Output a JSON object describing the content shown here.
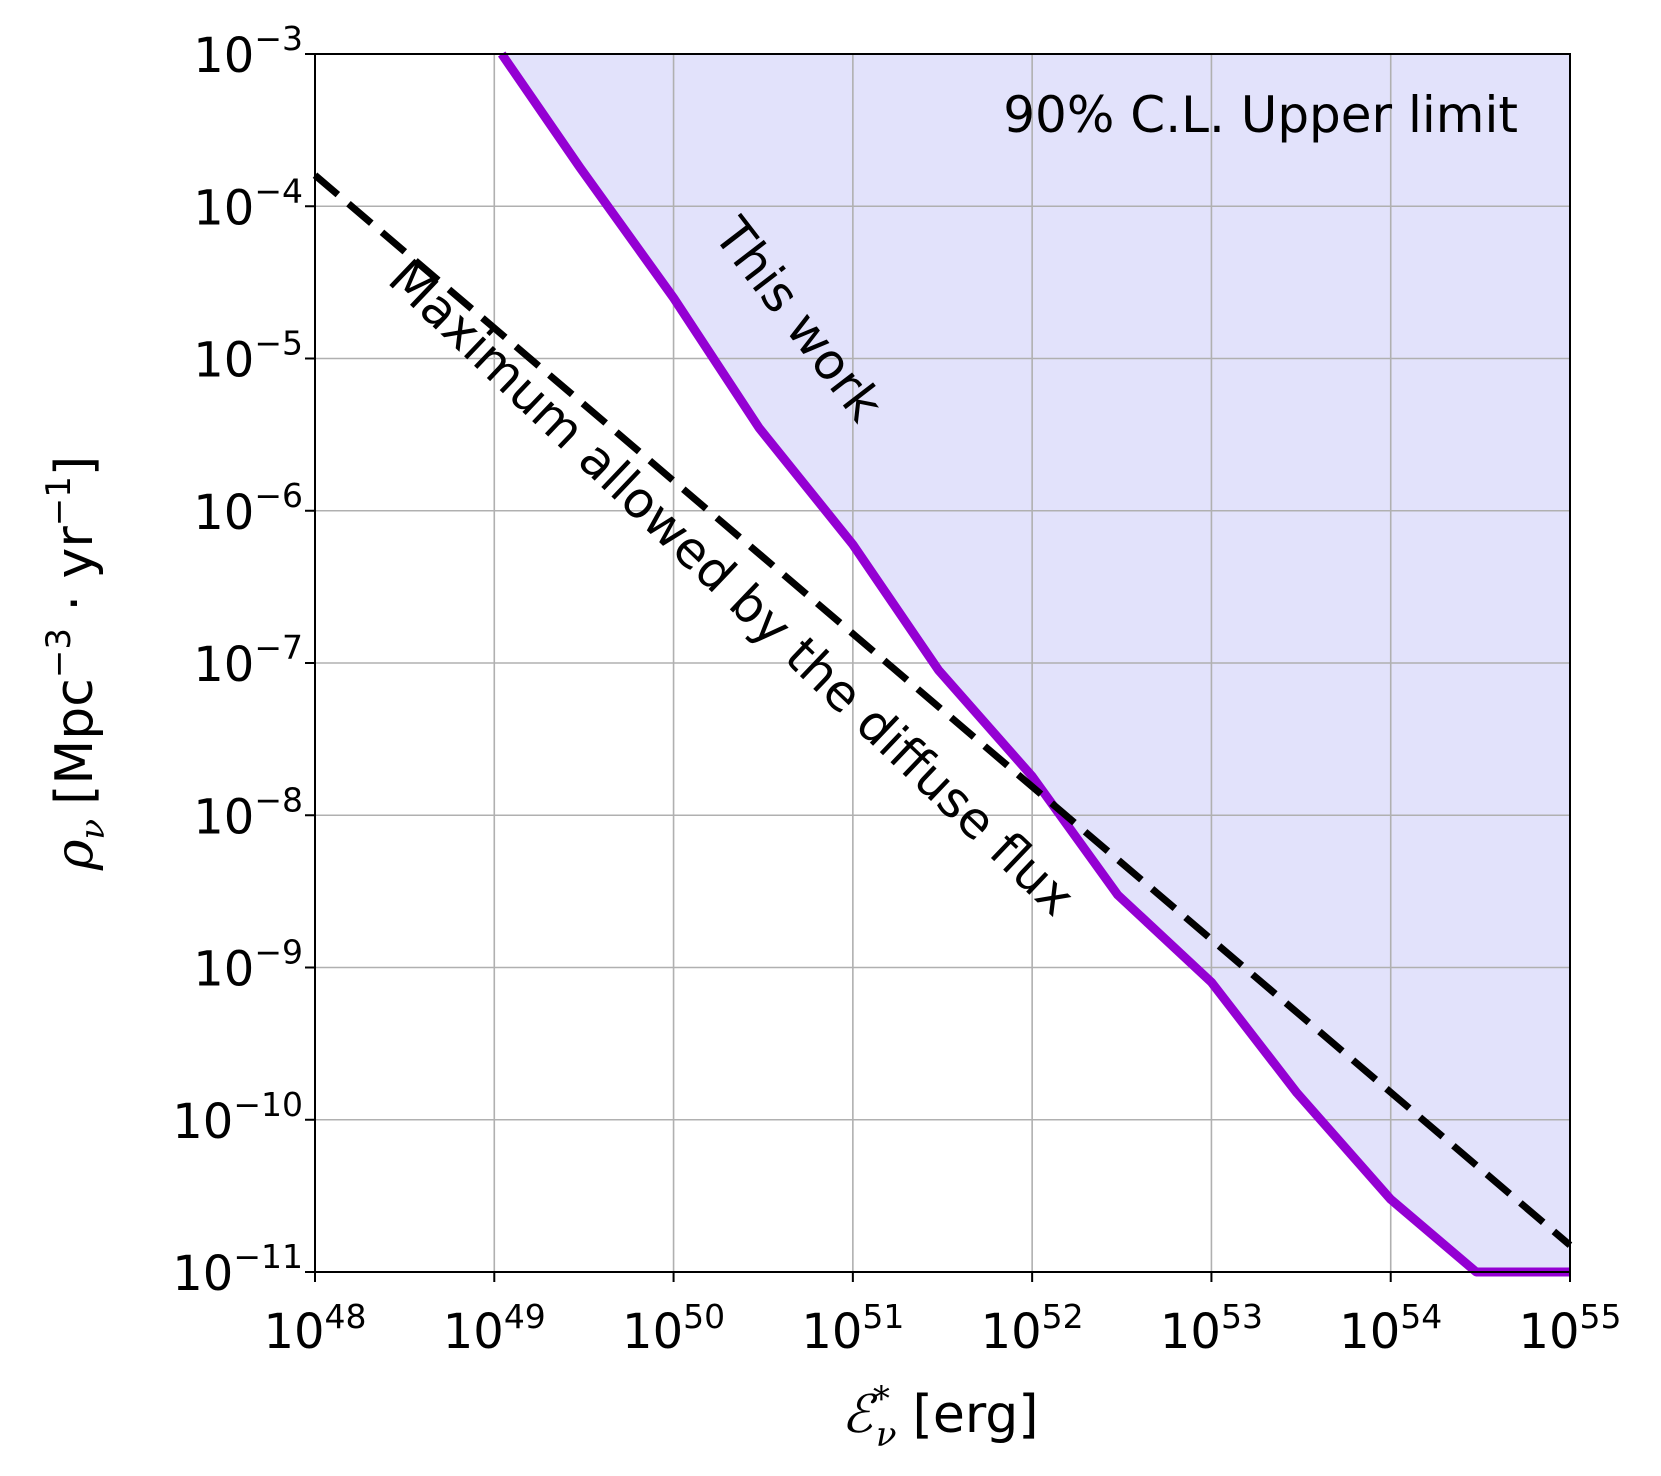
{
  "chart_data": {
    "type": "line",
    "title": "",
    "xlabel": {
      "symbol": "ℰ",
      "superscript": "*",
      "subscript": "ν",
      "unit": "[erg]"
    },
    "ylabel": {
      "symbol": "ρ",
      "subscript": "ν",
      "unit_prefix": "[Mpc",
      "unit_exp1": "−3",
      "unit_mid": " · yr",
      "unit_exp2": "−1",
      "unit_suffix": "]"
    },
    "x_scale": "log",
    "y_scale": "log",
    "xlim": [
      1e+48,
      1e+55
    ],
    "ylim": [
      1e-11,
      0.001
    ],
    "grid": true,
    "x_ticks": [
      {
        "value": 1e+48,
        "base": "10",
        "exp": "48"
      },
      {
        "value": 1e+49,
        "base": "10",
        "exp": "49"
      },
      {
        "value": 1e+50,
        "base": "10",
        "exp": "50"
      },
      {
        "value": 1e+51,
        "base": "10",
        "exp": "51"
      },
      {
        "value": 1e+52,
        "base": "10",
        "exp": "52"
      },
      {
        "value": 1e+53,
        "base": "10",
        "exp": "53"
      },
      {
        "value": 1e+54,
        "base": "10",
        "exp": "54"
      },
      {
        "value": 1e+55,
        "base": "10",
        "exp": "55"
      }
    ],
    "y_ticks": [
      {
        "value": 0.001,
        "base": "10",
        "exp": "−3"
      },
      {
        "value": 0.0001,
        "base": "10",
        "exp": "−4"
      },
      {
        "value": 1e-05,
        "base": "10",
        "exp": "−5"
      },
      {
        "value": 1e-06,
        "base": "10",
        "exp": "−6"
      },
      {
        "value": 1e-07,
        "base": "10",
        "exp": "−7"
      },
      {
        "value": 1e-08,
        "base": "10",
        "exp": "−8"
      },
      {
        "value": 1e-09,
        "base": "10",
        "exp": "−9"
      },
      {
        "value": 1e-10,
        "base": "10",
        "exp": "−10"
      },
      {
        "value": 1e-11,
        "base": "10",
        "exp": "−11"
      }
    ],
    "series": [
      {
        "name": "This work",
        "style": "solid",
        "color": "#9400d3",
        "fill_above": true,
        "fill_color": "#e2e2fb",
        "x": [
          1.1e+49,
          3e+49,
          1e+50,
          3e+50,
          1e+51,
          3e+51,
          1e+52,
          3e+52,
          1e+53,
          3e+53,
          1e+54,
          3e+54,
          1e+55
        ],
        "y": [
          0.001,
          0.00018,
          2.5e-05,
          3.5e-06,
          6e-07,
          9e-08,
          1.8e-08,
          3e-09,
          8e-10,
          1.5e-10,
          3e-11,
          1e-11,
          4.3e-12
        ]
      },
      {
        "name": "Maximum allowed by the diffuse flux",
        "style": "dashed",
        "color": "#000000",
        "x": [
          1e+48,
          1e+55
        ],
        "y": [
          0.00016,
          1.5e-11
        ]
      }
    ],
    "annotations": [
      {
        "text": "90% C.L. Upper limit"
      },
      {
        "text": "This work"
      },
      {
        "text": "Maximum allowed by the diffuse flux"
      }
    ]
  }
}
